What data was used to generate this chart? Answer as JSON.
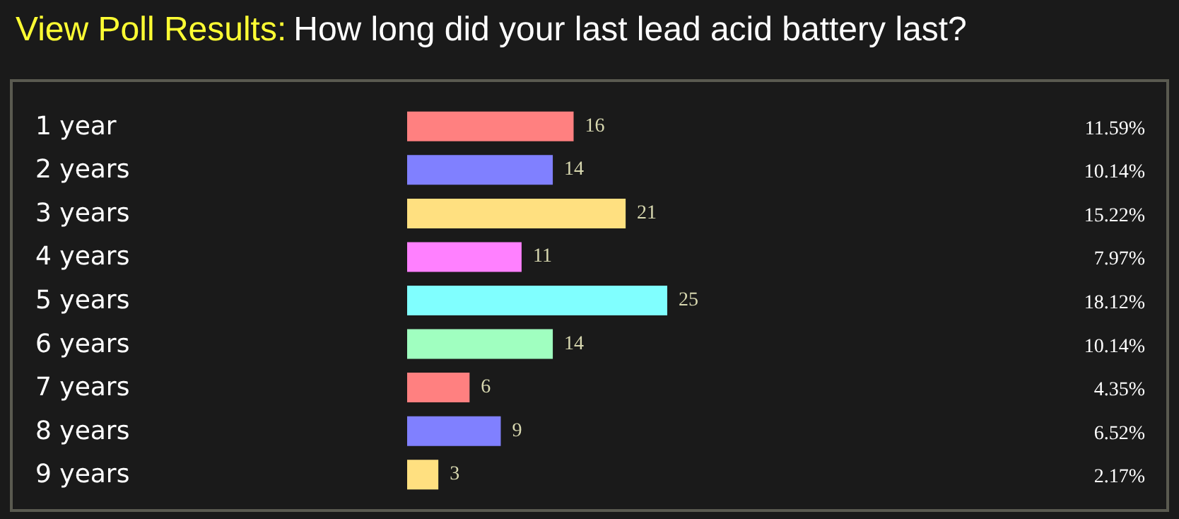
{
  "chart_data": {
    "type": "bar",
    "orientation": "horizontal",
    "subtitle": "View Poll Results:",
    "title": "How long did your last lead acid battery last?",
    "categories": [
      "1 year",
      "2 years",
      "3 years",
      "4 years",
      "5 years",
      "6 years",
      "7 years",
      "8 years",
      "9 years"
    ],
    "values": [
      16,
      14,
      21,
      11,
      25,
      14,
      6,
      9,
      3
    ],
    "colors": [
      "#ff8080",
      "#8080ff",
      "#ffe080",
      "#ff80ff",
      "#80ffff",
      "#a0ffc0",
      "#ff8080",
      "#8080ff",
      "#ffe080"
    ],
    "data_labels": true,
    "annotations": [
      "11.59%",
      "10.14%",
      "15.22%",
      "7.97%",
      "18.12%",
      "10.14%",
      "4.35%",
      "6.52%",
      "2.17%"
    ]
  }
}
